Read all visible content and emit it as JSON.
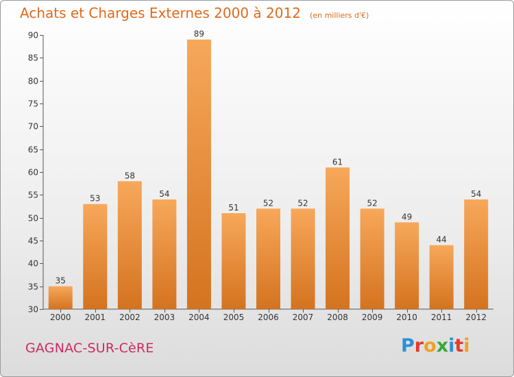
{
  "header": {
    "title": "Achats et Charges Externes 2000 à 2012",
    "unit": "(en milliers d'€)"
  },
  "footer": {
    "commune": "GAGNAC-SUR-CèRE",
    "logo": "Proxiti"
  },
  "colors": {
    "accent": "#e06a1c",
    "bar_top": "#f7a85a",
    "bar_bottom": "#d4731f",
    "commune": "#cc2a63"
  },
  "chart_data": {
    "type": "bar",
    "title": "Achats et Charges Externes 2000 à 2012",
    "categories": [
      "2000",
      "2001",
      "2002",
      "2003",
      "2004",
      "2005",
      "2006",
      "2007",
      "2008",
      "2009",
      "2010",
      "2011",
      "2012"
    ],
    "values": [
      35,
      53,
      58,
      54,
      89,
      51,
      52,
      52,
      61,
      52,
      49,
      44,
      54
    ],
    "ylim": [
      30,
      90
    ],
    "yticks": [
      30,
      35,
      40,
      45,
      50,
      55,
      60,
      65,
      70,
      75,
      80,
      85,
      90
    ],
    "grid": false,
    "legend": "none"
  }
}
